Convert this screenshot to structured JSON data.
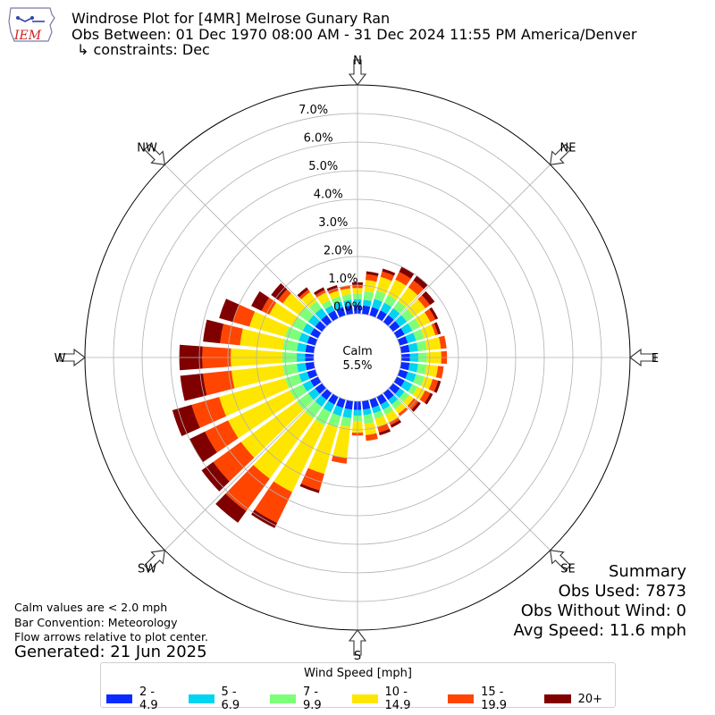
{
  "header": {
    "logo_text": "IEM",
    "title": "Windrose Plot for [4MR] Melrose Gunary Ran",
    "subtitle": "Obs Between: 01 Dec 1970 08:00 AM - 31 Dec 2024 11:55 PM America/Denver",
    "constraints": "↳ constraints: Dec"
  },
  "summary": {
    "heading": "Summary",
    "obs_used": "Obs Used: 7873",
    "obs_without_wind": "Obs Without Wind: 0",
    "avg_speed": "Avg Speed: 11.6 mph"
  },
  "notes": {
    "calm": "Calm values are < 2.0 mph",
    "bar_convention": "Bar Convention: Meteorology",
    "flow_arrows": "Flow arrows relative to plot center.",
    "generated": "Generated: 21 Jun 2025"
  },
  "legend": {
    "title": "Wind Speed [mph]",
    "items": [
      {
        "label": "2 - 4.9",
        "color": "#0a2bff"
      },
      {
        "label": "5 - 6.9",
        "color": "#00d4f0"
      },
      {
        "label": "7 - 9.9",
        "color": "#7dff7a"
      },
      {
        "label": "10 - 14.9",
        "color": "#ffe600"
      },
      {
        "label": "15 - 19.9",
        "color": "#ff4500"
      },
      {
        "label": "20+",
        "color": "#800000"
      }
    ]
  },
  "chart_data": {
    "type": "windrose",
    "calm_label": "Calm",
    "calm_value": "5.5%",
    "radial_ticks": [
      "0.0%",
      "1.0%",
      "2.0%",
      "3.0%",
      "4.0%",
      "5.0%",
      "6.0%",
      "7.0%"
    ],
    "radial_range": [
      0,
      8
    ],
    "directions": [
      "N",
      "NE",
      "E",
      "SE",
      "S",
      "SW",
      "W",
      "NW"
    ],
    "series_names": [
      "2 - 4.9",
      "5 - 6.9",
      "7 - 9.9",
      "10 - 14.9",
      "15 - 19.9",
      "20+"
    ],
    "bins": [
      {
        "dir": 0,
        "values": [
          0.3,
          0.2,
          0.2,
          0.2,
          0.1,
          0.1
        ]
      },
      {
        "dir": 10,
        "values": [
          0.3,
          0.2,
          0.3,
          0.4,
          0.2,
          0.1
        ]
      },
      {
        "dir": 20,
        "values": [
          0.3,
          0.3,
          0.3,
          0.5,
          0.2,
          0.1
        ]
      },
      {
        "dir": 30,
        "values": [
          0.3,
          0.3,
          0.3,
          0.6,
          0.3,
          0.2
        ]
      },
      {
        "dir": 40,
        "values": [
          0.3,
          0.3,
          0.3,
          0.6,
          0.3,
          0.2
        ]
      },
      {
        "dir": 50,
        "values": [
          0.3,
          0.3,
          0.3,
          0.5,
          0.2,
          0.2
        ]
      },
      {
        "dir": 60,
        "values": [
          0.3,
          0.3,
          0.3,
          0.4,
          0.2,
          0.1
        ]
      },
      {
        "dir": 70,
        "values": [
          0.3,
          0.3,
          0.3,
          0.4,
          0.1,
          0.1
        ]
      },
      {
        "dir": 80,
        "values": [
          0.3,
          0.3,
          0.3,
          0.5,
          0.2,
          0.0
        ]
      },
      {
        "dir": 90,
        "values": [
          0.3,
          0.3,
          0.3,
          0.5,
          0.2,
          0.0
        ]
      },
      {
        "dir": 100,
        "values": [
          0.3,
          0.3,
          0.3,
          0.4,
          0.2,
          0.0
        ]
      },
      {
        "dir": 110,
        "values": [
          0.3,
          0.3,
          0.3,
          0.3,
          0.2,
          0.1
        ]
      },
      {
        "dir": 120,
        "values": [
          0.3,
          0.3,
          0.2,
          0.3,
          0.2,
          0.1
        ]
      },
      {
        "dir": 130,
        "values": [
          0.3,
          0.2,
          0.2,
          0.2,
          0.2,
          0.1
        ]
      },
      {
        "dir": 140,
        "values": [
          0.3,
          0.2,
          0.2,
          0.2,
          0.1,
          0.0
        ]
      },
      {
        "dir": 150,
        "values": [
          0.3,
          0.2,
          0.2,
          0.3,
          0.1,
          0.1
        ]
      },
      {
        "dir": 160,
        "values": [
          0.3,
          0.2,
          0.2,
          0.3,
          0.2,
          0.1
        ]
      },
      {
        "dir": 170,
        "values": [
          0.3,
          0.2,
          0.3,
          0.4,
          0.2,
          0.0
        ]
      },
      {
        "dir": 180,
        "values": [
          0.3,
          0.2,
          0.2,
          0.4,
          0.1,
          0.0
        ]
      },
      {
        "dir": 190,
        "values": [
          0.3,
          0.3,
          0.3,
          1.1,
          0.2,
          0.0
        ]
      },
      {
        "dir": 200,
        "values": [
          0.3,
          0.3,
          0.4,
          1.7,
          0.6,
          0.1
        ]
      },
      {
        "dir": 210,
        "values": [
          0.3,
          0.3,
          0.5,
          2.6,
          1.2,
          0.2
        ]
      },
      {
        "dir": 220,
        "values": [
          0.3,
          0.3,
          0.5,
          2.6,
          1.4,
          0.5
        ]
      },
      {
        "dir": 230,
        "values": [
          0.3,
          0.3,
          0.5,
          2.4,
          1.2,
          0.5
        ]
      },
      {
        "dir": 240,
        "values": [
          0.3,
          0.3,
          0.5,
          2.4,
          0.9,
          0.6
        ]
      },
      {
        "dir": 250,
        "values": [
          0.3,
          0.3,
          0.5,
          2.4,
          1.0,
          0.7
        ]
      },
      {
        "dir": 260,
        "values": [
          0.3,
          0.3,
          0.5,
          1.8,
          1.0,
          0.8
        ]
      },
      {
        "dir": 270,
        "values": [
          0.3,
          0.3,
          0.5,
          1.8,
          1.0,
          0.8
        ]
      },
      {
        "dir": 280,
        "values": [
          0.3,
          0.3,
          0.5,
          1.5,
          0.7,
          0.6
        ]
      },
      {
        "dir": 290,
        "values": [
          0.3,
          0.3,
          0.5,
          1.3,
          0.6,
          0.5
        ]
      },
      {
        "dir": 300,
        "values": [
          0.3,
          0.3,
          0.4,
          0.9,
          0.3,
          0.4
        ]
      },
      {
        "dir": 310,
        "values": [
          0.3,
          0.3,
          0.4,
          0.7,
          0.2,
          0.3
        ]
      },
      {
        "dir": 320,
        "values": [
          0.3,
          0.3,
          0.3,
          0.4,
          0.1,
          0.1
        ]
      },
      {
        "dir": 330,
        "values": [
          0.3,
          0.2,
          0.2,
          0.3,
          0.1,
          0.1
        ]
      },
      {
        "dir": 340,
        "values": [
          0.3,
          0.2,
          0.2,
          0.2,
          0.1,
          0.1
        ]
      },
      {
        "dir": 350,
        "values": [
          0.3,
          0.2,
          0.2,
          0.2,
          0.1,
          0.0
        ]
      }
    ]
  }
}
